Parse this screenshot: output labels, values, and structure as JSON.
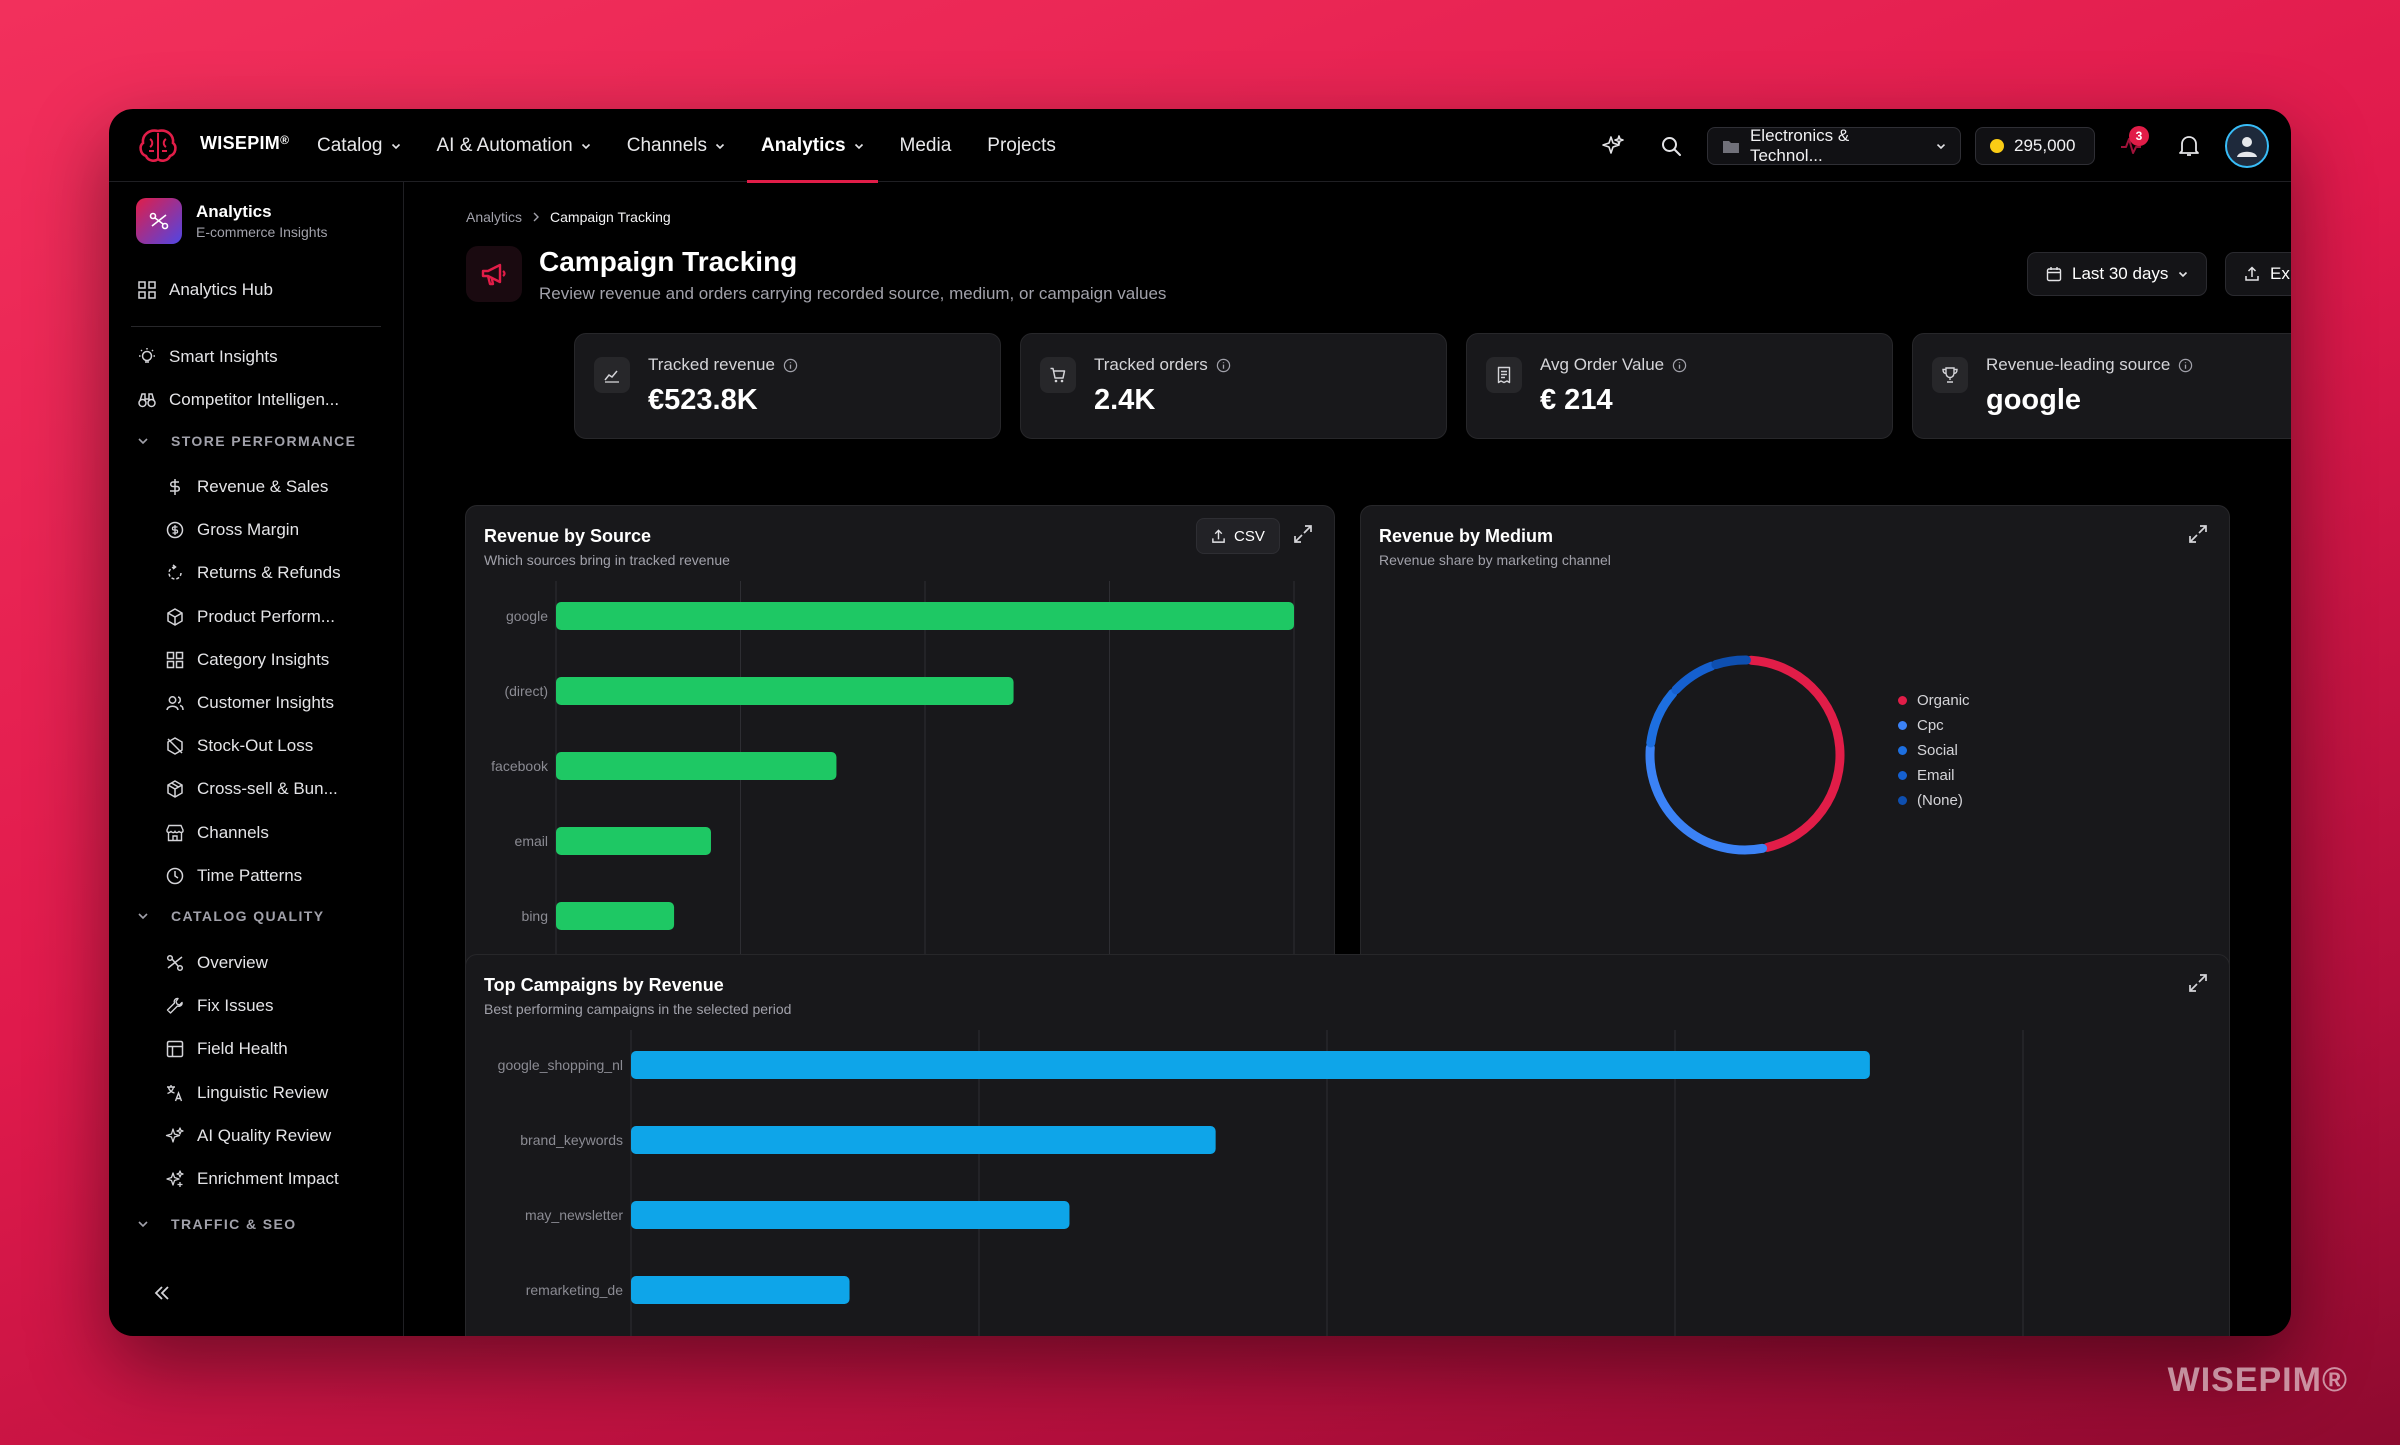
{
  "app": {
    "brand": "WISEPIM",
    "brand_mark": "®",
    "watermark": "WISEPIM®"
  },
  "nav": {
    "items": [
      {
        "label": "Catalog",
        "dropdown": true
      },
      {
        "label": "AI & Automation",
        "dropdown": true
      },
      {
        "label": "Channels",
        "dropdown": true
      },
      {
        "label": "Analytics",
        "dropdown": true,
        "active": true
      },
      {
        "label": "Media",
        "dropdown": false
      },
      {
        "label": "Projects",
        "dropdown": false
      }
    ]
  },
  "topbar": {
    "workspace": "Electronics & Technol...",
    "credits": "295,000",
    "activity_badge": "3"
  },
  "sidebar": {
    "header_title": "Analytics",
    "header_sub": "E-commerce Insights",
    "hub": "Analytics Hub",
    "smart_insights": "Smart Insights",
    "competitor": "Competitor Intelligen...",
    "store_section": "STORE PERFORMANCE",
    "store_items": [
      "Revenue & Sales",
      "Gross Margin",
      "Returns & Refunds",
      "Product Perform...",
      "Category Insights",
      "Customer Insights",
      "Stock-Out Loss",
      "Cross-sell & Bun...",
      "Channels",
      "Time Patterns"
    ],
    "catalog_section": "CATALOG QUALITY",
    "catalog_items": [
      "Overview",
      "Fix Issues",
      "Field Health",
      "Linguistic Review",
      "AI Quality Review",
      "Enrichment Impact"
    ],
    "traffic_section": "TRAFFIC & SEO"
  },
  "page": {
    "breadcrumb_root": "Analytics",
    "breadcrumb_current": "Campaign Tracking",
    "title": "Campaign Tracking",
    "description": "Review revenue and orders carrying recorded source, medium, or campaign values",
    "date_range": "Last 30 days",
    "export": "Export"
  },
  "kpis": [
    {
      "label": "Tracked revenue",
      "value": "€523.8K",
      "icon": "line-chart-icon"
    },
    {
      "label": "Tracked orders",
      "value": "2.4K",
      "icon": "cart-icon"
    },
    {
      "label": "Avg Order Value",
      "value": "€ 214",
      "icon": "receipt-icon"
    },
    {
      "label": "Revenue-leading source",
      "value": "google",
      "icon": "trophy-icon"
    }
  ],
  "cards": {
    "source_title": "Revenue by Source",
    "source_sub": "Which sources bring in tracked revenue",
    "csv": "CSV",
    "medium_title": "Revenue by Medium",
    "medium_sub": "Revenue share by marketing channel",
    "campaign_title": "Top Campaigns by Revenue",
    "campaign_sub": "Best performing campaigns in the selected period"
  },
  "colors": {
    "accent": "#e11d48",
    "source_bar": "#1ec864",
    "campaign_bar": "#0ea5e9"
  },
  "chart_data": [
    {
      "type": "bar",
      "orientation": "horizontal",
      "title": "Revenue by Source",
      "categories": [
        "google",
        "(direct)",
        "facebook",
        "email",
        "bing"
      ],
      "values": [
        100,
        62,
        38,
        21,
        16
      ],
      "xlim": [
        0,
        100
      ],
      "grid": true
    },
    {
      "type": "pie",
      "style": "donut",
      "title": "Revenue by Medium",
      "categories": [
        "Organic",
        "Cpc",
        "Social",
        "Email",
        "(None)"
      ],
      "values": [
        46,
        30,
        10,
        8,
        6
      ],
      "colors": [
        "#e11d48",
        "#3b82f6",
        "#1d6fe0",
        "#1560d0",
        "#0e4fb0"
      ],
      "legend": "right"
    },
    {
      "type": "bar",
      "orientation": "horizontal",
      "title": "Top Campaigns by Revenue",
      "categories": [
        "google_shopping_nl",
        "brand_keywords",
        "may_newsletter",
        "remarketing_de"
      ],
      "values": [
        89,
        42,
        31.5,
        15.7
      ],
      "xlim": [
        0,
        100
      ],
      "grid": true
    }
  ]
}
